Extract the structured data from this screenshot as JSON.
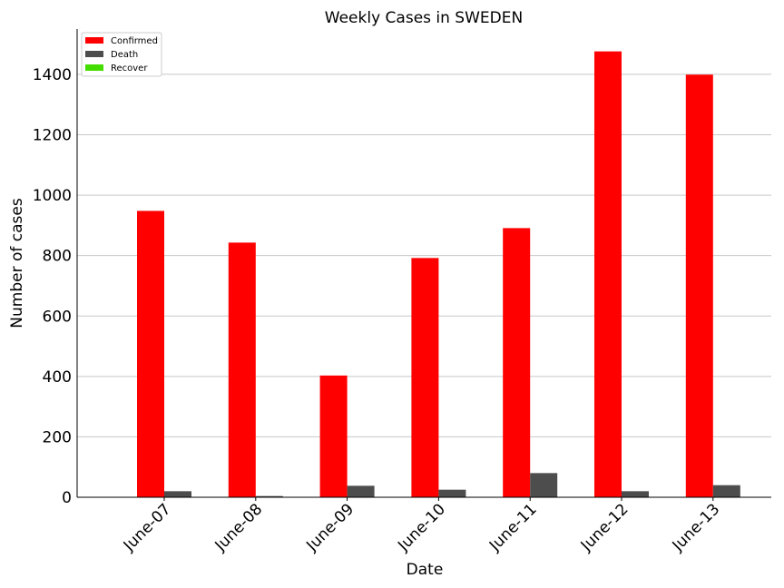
{
  "chart_data": {
    "type": "bar",
    "title": "Weekly Cases in SWEDEN",
    "xlabel": "Date",
    "ylabel": "Number of cases",
    "categories": [
      "June-07",
      "June-08",
      "June-09",
      "June-10",
      "June-11",
      "June-12",
      "June-13"
    ],
    "series": [
      {
        "name": "Confirmed",
        "color": "#ff0000",
        "values": [
          948,
          843,
          403,
          792,
          891,
          1476,
          1399
        ]
      },
      {
        "name": "Death",
        "color": "#4d4d4d",
        "values": [
          20,
          4,
          38,
          25,
          80,
          20,
          40
        ]
      },
      {
        "name": "Recover",
        "color": "#44dd00",
        "values": [
          0,
          0,
          0,
          0,
          0,
          0,
          0
        ]
      }
    ],
    "yticks": [
      0,
      200,
      400,
      600,
      800,
      1000,
      1200,
      1400
    ],
    "ylim": [
      0,
      1550
    ],
    "grid": "horizontal",
    "legend_position": "top-left"
  }
}
